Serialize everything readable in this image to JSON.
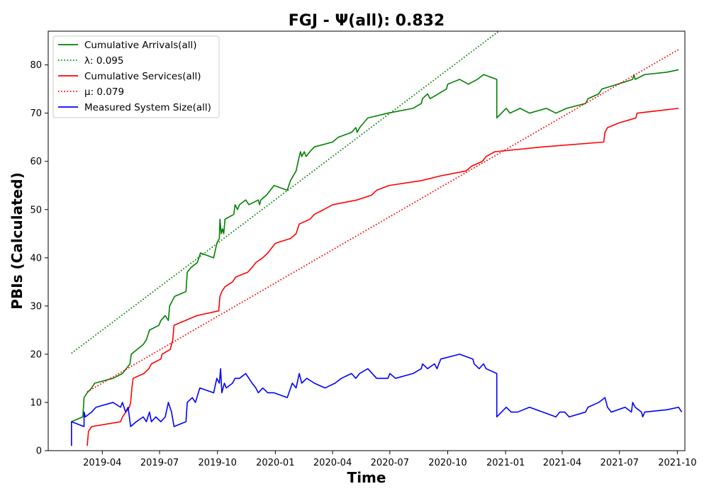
{
  "chart_data": {
    "type": "line",
    "title": "FGJ -  Ψ(all): 0.832",
    "xlabel": "Time",
    "ylabel": "PBIs (Calculated)",
    "xlim": [
      "2019-01-05",
      "2021-10-13"
    ],
    "ylim": [
      0,
      87
    ],
    "grid": false,
    "legend_position": "top-left",
    "x_ticks": [
      "2019-04",
      "2019-07",
      "2019-10",
      "2020-01",
      "2020-04",
      "2020-07",
      "2020-10",
      "2021-01",
      "2021-04",
      "2021-07",
      "2021-10"
    ],
    "y_ticks": [
      0,
      10,
      20,
      30,
      40,
      50,
      60,
      70,
      80
    ],
    "series": [
      {
        "name": "Cumulative Arrivals(all)",
        "color": "#008000",
        "style": "solid",
        "points": [
          [
            "2019-02-11",
            6
          ],
          [
            "2019-03-01",
            7
          ],
          [
            "2019-03-03",
            11
          ],
          [
            "2019-03-08",
            12
          ],
          [
            "2019-03-15",
            13
          ],
          [
            "2019-03-20",
            14
          ],
          [
            "2019-04-18",
            15
          ],
          [
            "2019-05-03",
            16
          ],
          [
            "2019-05-15",
            18
          ],
          [
            "2019-05-17",
            20
          ],
          [
            "2019-06-05",
            22
          ],
          [
            "2019-06-10",
            23
          ],
          [
            "2019-06-15",
            25
          ],
          [
            "2019-06-30",
            26
          ],
          [
            "2019-07-03",
            27
          ],
          [
            "2019-07-10",
            28
          ],
          [
            "2019-07-15",
            27
          ],
          [
            "2019-07-17",
            30
          ],
          [
            "2019-07-25",
            32
          ],
          [
            "2019-08-12",
            33
          ],
          [
            "2019-08-14",
            37
          ],
          [
            "2019-08-20",
            38
          ],
          [
            "2019-08-30",
            39
          ],
          [
            "2019-09-04",
            41
          ],
          [
            "2019-09-25",
            40
          ],
          [
            "2019-09-30",
            43
          ],
          [
            "2019-10-04",
            44
          ],
          [
            "2019-10-05",
            48
          ],
          [
            "2019-10-07",
            45
          ],
          [
            "2019-10-09",
            46
          ],
          [
            "2019-10-11",
            45
          ],
          [
            "2019-10-13",
            48
          ],
          [
            "2019-10-27",
            49
          ],
          [
            "2019-10-29",
            51
          ],
          [
            "2019-11-02",
            50
          ],
          [
            "2019-11-05",
            51
          ],
          [
            "2019-11-15",
            52
          ],
          [
            "2019-11-20",
            51
          ],
          [
            "2019-12-05",
            52
          ],
          [
            "2019-12-07",
            51
          ],
          [
            "2019-12-09",
            52
          ],
          [
            "2019-12-18",
            53
          ],
          [
            "2019-12-30",
            55
          ],
          [
            "2020-01-20",
            54
          ],
          [
            "2020-01-25",
            56
          ],
          [
            "2020-02-03",
            58
          ],
          [
            "2020-02-08",
            61
          ],
          [
            "2020-02-10",
            62
          ],
          [
            "2020-02-12",
            61
          ],
          [
            "2020-02-16",
            62
          ],
          [
            "2020-02-19",
            61
          ],
          [
            "2020-02-25",
            62
          ],
          [
            "2020-03-03",
            63
          ],
          [
            "2020-04-01",
            64
          ],
          [
            "2020-04-10",
            65
          ],
          [
            "2020-05-01",
            66
          ],
          [
            "2020-05-08",
            67
          ],
          [
            "2020-05-10",
            66
          ],
          [
            "2020-05-14",
            67
          ],
          [
            "2020-05-27",
            69
          ],
          [
            "2020-06-28",
            70
          ],
          [
            "2020-08-07",
            71
          ],
          [
            "2020-08-20",
            72
          ],
          [
            "2020-08-22",
            73
          ],
          [
            "2020-08-30",
            74
          ],
          [
            "2020-09-03",
            73
          ],
          [
            "2020-09-29",
            75
          ],
          [
            "2020-10-01",
            76
          ],
          [
            "2020-10-20",
            77
          ],
          [
            "2020-11-03",
            76
          ],
          [
            "2020-11-17",
            77
          ],
          [
            "2020-11-27",
            78
          ],
          [
            "2020-12-18",
            77
          ],
          [
            "2020-12-18",
            69
          ],
          [
            "2021-01-02",
            71
          ],
          [
            "2021-01-08",
            70
          ],
          [
            "2021-01-24",
            71
          ],
          [
            "2021-02-08",
            70
          ],
          [
            "2021-03-07",
            71
          ],
          [
            "2021-03-22",
            70
          ],
          [
            "2021-04-08",
            71
          ],
          [
            "2021-05-08",
            72
          ],
          [
            "2021-05-12",
            73
          ],
          [
            "2021-05-29",
            74
          ],
          [
            "2021-06-03",
            75
          ],
          [
            "2021-06-28",
            76
          ],
          [
            "2021-07-22",
            77
          ],
          [
            "2021-07-24",
            78
          ],
          [
            "2021-07-26",
            77
          ],
          [
            "2021-08-10",
            78
          ],
          [
            "2021-09-15",
            78.5
          ],
          [
            "2021-10-03",
            79
          ]
        ]
      },
      {
        "name": "λ: 0.095",
        "color": "#008000",
        "style": "dotted",
        "points": [
          [
            "2019-02-11",
            20.2
          ],
          [
            "2021-10-03",
            115.1
          ]
        ]
      },
      {
        "name": "Cumulative Services(all)",
        "color": "#ff0000",
        "style": "solid",
        "points": [
          [
            "2019-03-08",
            1
          ],
          [
            "2019-03-10",
            4
          ],
          [
            "2019-03-15",
            5
          ],
          [
            "2019-04-30",
            6
          ],
          [
            "2019-05-03",
            7
          ],
          [
            "2019-05-14",
            9
          ],
          [
            "2019-05-16",
            10
          ],
          [
            "2019-05-18",
            13
          ],
          [
            "2019-05-20",
            15
          ],
          [
            "2019-06-06",
            16
          ],
          [
            "2019-06-14",
            17
          ],
          [
            "2019-06-18",
            18
          ],
          [
            "2019-07-03",
            19
          ],
          [
            "2019-07-05",
            20
          ],
          [
            "2019-07-18",
            21
          ],
          [
            "2019-07-22",
            23
          ],
          [
            "2019-07-24",
            26
          ],
          [
            "2019-08-29",
            28
          ],
          [
            "2019-10-03",
            29
          ],
          [
            "2019-10-05",
            32
          ],
          [
            "2019-10-08",
            33
          ],
          [
            "2019-10-13",
            34
          ],
          [
            "2019-10-25",
            35
          ],
          [
            "2019-10-30",
            36
          ],
          [
            "2019-11-18",
            37
          ],
          [
            "2019-11-25",
            38
          ],
          [
            "2019-12-01",
            39
          ],
          [
            "2019-12-12",
            40
          ],
          [
            "2019-12-20",
            41
          ],
          [
            "2020-01-01",
            43
          ],
          [
            "2020-01-25",
            44
          ],
          [
            "2020-02-03",
            45
          ],
          [
            "2020-02-08",
            47
          ],
          [
            "2020-02-25",
            48
          ],
          [
            "2020-03-03",
            49
          ],
          [
            "2020-03-18",
            50
          ],
          [
            "2020-04-01",
            51
          ],
          [
            "2020-05-10",
            52
          ],
          [
            "2020-06-02",
            53
          ],
          [
            "2020-06-10",
            54
          ],
          [
            "2020-06-30",
            55
          ],
          [
            "2020-08-20",
            56
          ],
          [
            "2020-09-20",
            57
          ],
          [
            "2020-10-30",
            58
          ],
          [
            "2020-11-08",
            59
          ],
          [
            "2020-11-25",
            60
          ],
          [
            "2020-12-01",
            61
          ],
          [
            "2020-12-15",
            62
          ],
          [
            "2021-03-01",
            63
          ],
          [
            "2021-06-06",
            64
          ],
          [
            "2021-06-08",
            66
          ],
          [
            "2021-06-12",
            67
          ],
          [
            "2021-07-01",
            68
          ],
          [
            "2021-07-27",
            69
          ],
          [
            "2021-07-29",
            70
          ],
          [
            "2021-08-31",
            70.5
          ],
          [
            "2021-10-03",
            71
          ]
        ]
      },
      {
        "name": "μ: 0.079",
        "color": "#ff0000",
        "style": "dotted",
        "points": [
          [
            "2019-03-08",
            12.2
          ],
          [
            "2021-10-03",
            83.2
          ]
        ]
      },
      {
        "name": "Measured System Size(all)",
        "color": "#0000ff",
        "style": "solid",
        "points": [
          [
            "2019-02-11",
            1
          ],
          [
            "2019-02-11",
            6
          ],
          [
            "2019-03-03",
            5
          ],
          [
            "2019-03-03",
            8
          ],
          [
            "2019-03-05",
            7
          ],
          [
            "2019-03-15",
            8
          ],
          [
            "2019-03-22",
            9
          ],
          [
            "2019-04-18",
            10
          ],
          [
            "2019-04-30",
            9
          ],
          [
            "2019-05-03",
            10
          ],
          [
            "2019-05-08",
            8
          ],
          [
            "2019-05-12",
            9
          ],
          [
            "2019-05-16",
            5
          ],
          [
            "2019-05-25",
            6
          ],
          [
            "2019-06-05",
            7
          ],
          [
            "2019-06-10",
            6
          ],
          [
            "2019-06-15",
            8
          ],
          [
            "2019-06-18",
            6
          ],
          [
            "2019-06-25",
            7
          ],
          [
            "2019-07-03",
            6
          ],
          [
            "2019-07-10",
            7
          ],
          [
            "2019-07-15",
            10
          ],
          [
            "2019-07-20",
            8
          ],
          [
            "2019-07-24",
            5
          ],
          [
            "2019-08-12",
            6
          ],
          [
            "2019-08-14",
            10
          ],
          [
            "2019-08-22",
            11
          ],
          [
            "2019-08-27",
            10
          ],
          [
            "2019-09-03",
            13
          ],
          [
            "2019-09-25",
            12
          ],
          [
            "2019-09-30",
            15
          ],
          [
            "2019-10-04",
            14
          ],
          [
            "2019-10-06",
            17
          ],
          [
            "2019-10-08",
            12
          ],
          [
            "2019-10-12",
            14
          ],
          [
            "2019-10-15",
            13
          ],
          [
            "2019-10-25",
            14
          ],
          [
            "2019-10-29",
            15
          ],
          [
            "2019-11-05",
            15
          ],
          [
            "2019-11-15",
            16
          ],
          [
            "2019-11-25",
            14
          ],
          [
            "2019-12-01",
            13
          ],
          [
            "2019-12-05",
            12
          ],
          [
            "2019-12-12",
            13
          ],
          [
            "2019-12-20",
            12
          ],
          [
            "2019-12-30",
            12
          ],
          [
            "2020-01-20",
            11
          ],
          [
            "2020-01-28",
            14
          ],
          [
            "2020-02-03",
            13
          ],
          [
            "2020-02-08",
            16
          ],
          [
            "2020-02-12",
            14
          ],
          [
            "2020-02-20",
            15
          ],
          [
            "2020-03-03",
            14
          ],
          [
            "2020-03-20",
            13
          ],
          [
            "2020-04-05",
            14
          ],
          [
            "2020-04-15",
            15
          ],
          [
            "2020-05-01",
            16
          ],
          [
            "2020-05-08",
            15
          ],
          [
            "2020-05-14",
            16
          ],
          [
            "2020-05-27",
            17
          ],
          [
            "2020-06-10",
            15
          ],
          [
            "2020-06-28",
            15
          ],
          [
            "2020-07-01",
            16
          ],
          [
            "2020-07-10",
            15
          ],
          [
            "2020-08-07",
            16
          ],
          [
            "2020-08-20",
            17
          ],
          [
            "2020-08-22",
            18
          ],
          [
            "2020-08-30",
            17
          ],
          [
            "2020-09-10",
            18
          ],
          [
            "2020-09-14",
            17
          ],
          [
            "2020-09-20",
            19
          ],
          [
            "2020-10-20",
            20
          ],
          [
            "2020-11-10",
            19
          ],
          [
            "2020-11-12",
            18
          ],
          [
            "2020-11-20",
            17
          ],
          [
            "2020-11-27",
            18
          ],
          [
            "2020-12-01",
            17
          ],
          [
            "2020-12-18",
            16
          ],
          [
            "2020-12-18",
            7
          ],
          [
            "2021-01-02",
            9
          ],
          [
            "2021-01-10",
            8
          ],
          [
            "2021-01-20",
            8
          ],
          [
            "2021-02-08",
            9
          ],
          [
            "2021-03-01",
            8
          ],
          [
            "2021-03-22",
            7
          ],
          [
            "2021-03-28",
            8
          ],
          [
            "2021-04-05",
            8
          ],
          [
            "2021-04-12",
            7
          ],
          [
            "2021-05-08",
            8
          ],
          [
            "2021-05-12",
            9
          ],
          [
            "2021-05-29",
            10
          ],
          [
            "2021-06-08",
            11
          ],
          [
            "2021-06-12",
            9
          ],
          [
            "2021-06-18",
            8
          ],
          [
            "2021-07-10",
            9
          ],
          [
            "2021-07-20",
            8
          ],
          [
            "2021-07-22",
            10
          ],
          [
            "2021-07-26",
            9
          ],
          [
            "2021-08-05",
            8
          ],
          [
            "2021-08-07",
            7
          ],
          [
            "2021-08-10",
            8
          ],
          [
            "2021-09-15",
            8.5
          ],
          [
            "2021-10-03",
            9
          ],
          [
            "2021-10-08",
            8
          ]
        ]
      }
    ]
  }
}
